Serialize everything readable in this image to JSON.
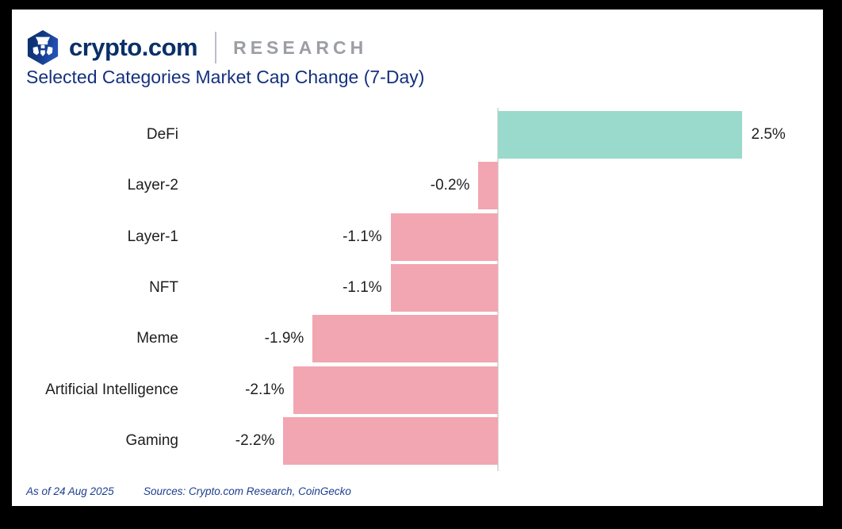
{
  "header": {
    "brand": "crypto.com",
    "sub_brand": "RESEARCH",
    "logo_icon": "crypto-com-hexagon-lion-shield"
  },
  "title": "Selected Categories Market Cap Change (7-Day)",
  "chart_data": {
    "type": "bar",
    "orientation": "horizontal",
    "title": "Selected Categories Market Cap Change (7-Day)",
    "categories": [
      "DeFi",
      "Layer-2",
      "Layer-1",
      "NFT",
      "Meme",
      "Artificial Intelligence",
      "Gaming"
    ],
    "values": [
      2.5,
      -0.2,
      -1.1,
      -1.1,
      -1.9,
      -2.1,
      -2.2
    ],
    "value_labels": [
      "2.5%",
      "-0.2%",
      "-1.1%",
      "-1.1%",
      "-1.9%",
      "-2.1%",
      "-2.2%"
    ],
    "unit": "%",
    "xlim": [
      -2.5,
      3.3
    ],
    "grid": false,
    "legend": "none",
    "zero_line": true,
    "value_label_position": "outside-end",
    "positive_color": "#9adacd",
    "negative_color": "#f2a6b1",
    "axis_line_color": "#dcdcdc"
  },
  "footer": {
    "as_of": "As of 24 Aug 2025",
    "sources": "Sources: Crypto.com Research, CoinGecko"
  },
  "colors": {
    "frame_bg": "#000000",
    "card_bg": "#ffffff",
    "title": "#15317e",
    "brand": "#0b3068",
    "sub_brand": "#9b9ea3",
    "divider": "#bcbfc6",
    "label_text": "#1e1e1e",
    "footer_text": "#1c3d8f",
    "logo_dark_blue": "#0a2c68",
    "logo_mid_blue": "#2450b4"
  }
}
